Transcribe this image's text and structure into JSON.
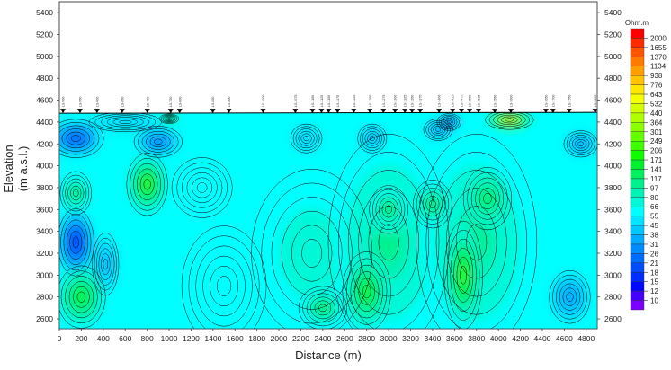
{
  "chart_data": {
    "type": "heatmap",
    "subtype": "resistivity contour section",
    "xlabel": "Distance (m)",
    "ylabel": "Elevation",
    "ylabel2": "(m a.s.l.)",
    "xlim": [
      0,
      4900
    ],
    "ylim": [
      2510,
      5500
    ],
    "x_ticks": [
      0,
      200,
      400,
      600,
      800,
      1000,
      1200,
      1400,
      1600,
      1800,
      2000,
      2200,
      2400,
      2600,
      2800,
      3000,
      3200,
      3400,
      3600,
      3800,
      4000,
      4200,
      4400,
      4600,
      4800
    ],
    "y_ticks": [
      2600,
      2800,
      3000,
      3200,
      3400,
      3600,
      3800,
      4000,
      4200,
      4400,
      4600,
      4800,
      5000,
      5200,
      5400
    ],
    "surface_elevation": 4480,
    "background_resistivity": 55,
    "colorbar": {
      "unit": "Ohm.m",
      "levels": [
        2000,
        1655,
        1370,
        1134,
        938,
        776,
        643,
        532,
        440,
        364,
        301,
        249,
        206,
        171,
        141,
        117,
        97,
        80,
        66,
        55,
        45,
        38,
        31,
        26,
        21,
        18,
        15,
        12,
        10
      ],
      "colors": [
        "#ff0000",
        "#ff2a00",
        "#ff5500",
        "#ff7a00",
        "#ff9f00",
        "#ffc400",
        "#ffe600",
        "#f4ff00",
        "#d4ff00",
        "#b0ff00",
        "#8cff00",
        "#66ff00",
        "#3cff00",
        "#10ff00",
        "#00f030",
        "#00f060",
        "#00f08c",
        "#00f2b4",
        "#00f8d8",
        "#00ffff",
        "#00e4ff",
        "#00c8ff",
        "#00aaff",
        "#008cff",
        "#006cff",
        "#004cff",
        "#002cff",
        "#0008ff",
        "#4400ff",
        "#7a00ff"
      ]
    },
    "stations": [
      {
        "label": "LS-500",
        "distance": 33
      },
      {
        "label": "LS-550",
        "distance": 188
      },
      {
        "label": "LS-600",
        "distance": 343
      },
      {
        "label": "LS-650",
        "distance": 572
      },
      {
        "label": "LS-700",
        "distance": 801
      },
      {
        "label": "LS-750",
        "distance": 1014
      },
      {
        "label": "LS-800",
        "distance": 1096
      },
      {
        "label": "LS-850",
        "distance": 1398
      },
      {
        "label": "LS-900",
        "distance": 1545
      },
      {
        "label": "LS-1000",
        "distance": 1856
      },
      {
        "label": "LS-1075",
        "distance": 2150
      },
      {
        "label": "LS-1100",
        "distance": 2306
      },
      {
        "label": "LS-1125",
        "distance": 2388
      },
      {
        "label": "LS-1150",
        "distance": 2453
      },
      {
        "label": "LS-1175",
        "distance": 2535
      },
      {
        "label": "LS-1225",
        "distance": 2682
      },
      {
        "label": "LS-1250",
        "distance": 2829
      },
      {
        "label": "LS-1275",
        "distance": 2952
      },
      {
        "label": "LS-1300",
        "distance": 3058
      },
      {
        "label": "LS-1325",
        "distance": 3148
      },
      {
        "label": "LS-1350",
        "distance": 3213
      },
      {
        "label": "LS-1375",
        "distance": 3287
      },
      {
        "label": "LS-1400",
        "distance": 3459
      },
      {
        "label": "LS-1425",
        "distance": 3582
      },
      {
        "label": "LS-1475",
        "distance": 3663
      },
      {
        "label": "LS-1500",
        "distance": 3737
      },
      {
        "label": "LS-1525",
        "distance": 3819
      },
      {
        "label": "LS-1550",
        "distance": 3966
      },
      {
        "label": "LS-1600",
        "distance": 4113
      },
      {
        "label": "LS-1650",
        "distance": 4432
      },
      {
        "label": "LS-1700",
        "distance": 4497
      },
      {
        "label": "LS-1750",
        "distance": 4644
      },
      {
        "label": "LS-1800",
        "distance": 4881
      }
    ],
    "anomalies": [
      {
        "x": 2300,
        "y": 3200,
        "rx": 500,
        "ry": 700,
        "value": 80
      },
      {
        "x": 3000,
        "y": 3300,
        "rx": 500,
        "ry": 900,
        "value": 97
      },
      {
        "x": 3800,
        "y": 3300,
        "rx": 500,
        "ry": 900,
        "value": 97
      },
      {
        "x": 1500,
        "y": 2900,
        "rx": 350,
        "ry": 500,
        "value": 66
      },
      {
        "x": 150,
        "y": 4250,
        "rx": 230,
        "ry": 160,
        "value": 21
      },
      {
        "x": 900,
        "y": 4220,
        "rx": 200,
        "ry": 130,
        "value": 26
      },
      {
        "x": 150,
        "y": 3300,
        "rx": 150,
        "ry": 280,
        "value": 15
      },
      {
        "x": 420,
        "y": 3100,
        "rx": 110,
        "ry": 260,
        "value": 38
      },
      {
        "x": 150,
        "y": 3750,
        "rx": 130,
        "ry": 180,
        "value": 117
      },
      {
        "x": 800,
        "y": 3830,
        "rx": 170,
        "ry": 260,
        "value": 206
      },
      {
        "x": 200,
        "y": 2800,
        "rx": 200,
        "ry": 260,
        "value": 171
      },
      {
        "x": 2800,
        "y": 2850,
        "rx": 200,
        "ry": 330,
        "value": 171
      },
      {
        "x": 3680,
        "y": 3000,
        "rx": 160,
        "ry": 450,
        "value": 206
      },
      {
        "x": 3900,
        "y": 3700,
        "rx": 200,
        "ry": 260,
        "value": 141
      },
      {
        "x": 3000,
        "y": 3600,
        "rx": 160,
        "ry": 200,
        "value": 117
      },
      {
        "x": 3400,
        "y": 3650,
        "rx": 160,
        "ry": 200,
        "value": 117
      },
      {
        "x": 2400,
        "y": 2700,
        "rx": 200,
        "ry": 180,
        "value": 117
      },
      {
        "x": 4650,
        "y": 2800,
        "rx": 170,
        "ry": 220,
        "value": 31
      },
      {
        "x": 3450,
        "y": 4330,
        "rx": 120,
        "ry": 90,
        "value": 31
      },
      {
        "x": 4750,
        "y": 4200,
        "rx": 140,
        "ry": 110,
        "value": 31
      },
      {
        "x": 2850,
        "y": 4250,
        "rx": 120,
        "ry": 120,
        "value": 38
      },
      {
        "x": 2250,
        "y": 4250,
        "rx": 130,
        "ry": 120,
        "value": 45
      },
      {
        "x": 1300,
        "y": 3800,
        "rx": 250,
        "ry": 250,
        "value": 66
      },
      {
        "x": 4100,
        "y": 4420,
        "rx": 200,
        "ry": 80,
        "value": 776
      },
      {
        "x": 3550,
        "y": 4400,
        "rx": 100,
        "ry": 70,
        "value": 21
      },
      {
        "x": 600,
        "y": 4400,
        "rx": 300,
        "ry": 80,
        "value": 45
      },
      {
        "x": 1000,
        "y": 4430,
        "rx": 80,
        "ry": 40,
        "value": 249
      }
    ]
  }
}
